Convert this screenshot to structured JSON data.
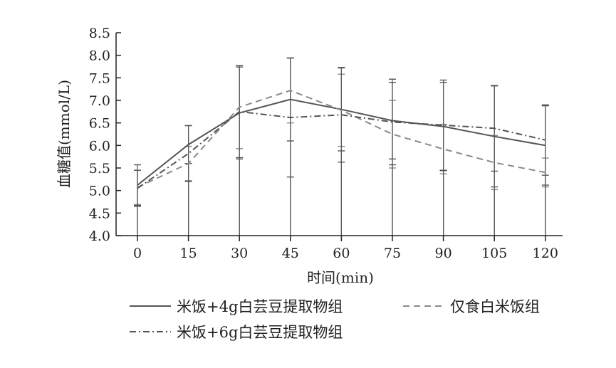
{
  "chart_data": {
    "type": "line",
    "title": "",
    "xlabel": "时间(min)",
    "ylabel": "血糖值(mmol/L)",
    "x": [
      0,
      15,
      30,
      45,
      60,
      75,
      90,
      105,
      120
    ],
    "x_tick_labels": [
      "0",
      "15",
      "30",
      "45",
      "60",
      "75",
      "90",
      "105",
      "120"
    ],
    "ylim": [
      4.0,
      8.5
    ],
    "y_ticks": [
      4.0,
      4.5,
      5.0,
      5.5,
      6.0,
      6.5,
      7.0,
      7.5,
      8.0,
      8.5
    ],
    "y_tick_labels": [
      "4.0",
      "4.5",
      "5.0",
      "5.5",
      "6.0",
      "6.5",
      "7.0",
      "7.5",
      "8.0",
      "8.5"
    ],
    "grid": false,
    "legend_position": "bottom",
    "series": [
      {
        "name": "米饭+4g白芸豆提取物组",
        "style": "solid",
        "color": "#555555",
        "values": [
          5.12,
          6.02,
          6.72,
          7.02,
          6.8,
          6.55,
          6.42,
          6.2,
          6.0
        ],
        "error": [
          0.45,
          0.42,
          1.02,
          0.92,
          0.92,
          0.85,
          0.98,
          1.12,
          0.88
        ]
      },
      {
        "name": "仅食白米饭组",
        "style": "dashed",
        "color": "#8a8a8a",
        "values": [
          5.07,
          5.6,
          6.85,
          7.22,
          6.78,
          6.25,
          5.92,
          5.62,
          5.4
        ],
        "error": [
          0.38,
          0.38,
          0.92,
          0.72,
          0.8,
          0.75,
          0.55,
          0.6,
          0.32
        ]
      },
      {
        "name": "米饭+6g白芸豆提取物组",
        "style": "dashdot",
        "color": "#555555",
        "values": [
          5.05,
          5.82,
          6.75,
          6.62,
          6.68,
          6.52,
          6.45,
          6.38,
          6.12
        ],
        "error": [
          0.4,
          0.62,
          1.02,
          1.32,
          1.05,
          0.95,
          1.0,
          0.95,
          0.78
        ]
      }
    ]
  }
}
